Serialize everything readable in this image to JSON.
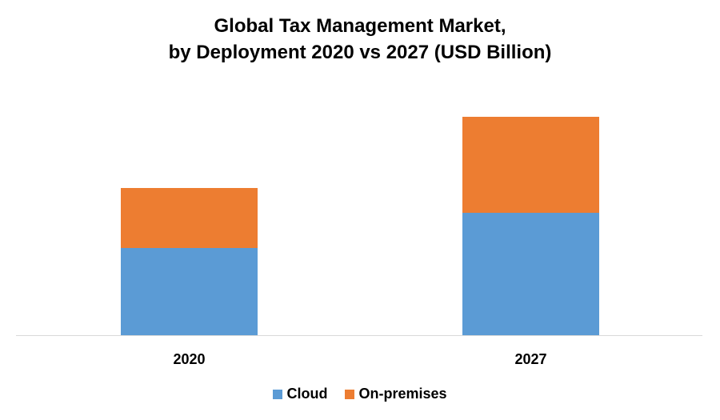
{
  "chart_data": {
    "type": "bar",
    "stacked": true,
    "title": "Global Tax Management Market, by Deployment 2020 vs 2027 (USD Billion)",
    "title_lines": [
      "Global Tax Management Market,",
      "by Deployment 2020 vs 2027 (USD Billion)"
    ],
    "xlabel": "",
    "ylabel": "",
    "categories": [
      "2020",
      "2027"
    ],
    "series": [
      {
        "name": "Cloud",
        "color": "#5B9BD5",
        "values": [
          1.09,
          1.53
        ]
      },
      {
        "name": "On-premises",
        "color": "#ED7D31",
        "values": [
          0.75,
          1.2
        ]
      }
    ],
    "ylim": [
      0,
      3.0
    ],
    "grid": false,
    "y_axis_visible": false,
    "legend_position": "bottom"
  }
}
